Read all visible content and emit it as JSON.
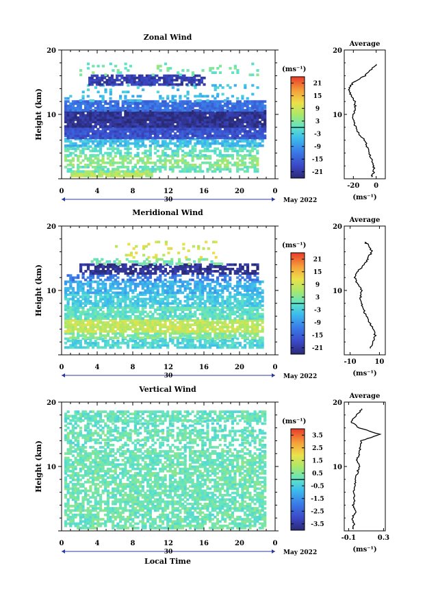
{
  "chart_data": [
    {
      "type": "heatmap",
      "title": "Zonal Wind",
      "ylabel": "Height (km)",
      "yticks": [
        "20",
        "10"
      ],
      "xticks": [
        "0",
        "4",
        "8",
        "12",
        "16",
        "20",
        "0"
      ],
      "date_day": "30",
      "date_month": "May 2022",
      "ylim": [
        0,
        20
      ],
      "xlim": [
        0,
        24
      ],
      "data_x_range": [
        0.3,
        22.8
      ],
      "data_y_range": [
        0.3,
        17.8
      ],
      "colorbar": {
        "unit": "(ms⁻¹)",
        "ticks": [
          "21",
          "15",
          "9",
          "3",
          "-3",
          "-9",
          "-15",
          "-21"
        ],
        "range": [
          -24,
          24
        ]
      },
      "layers": [
        {
          "y": [
            0.3,
            1.0
          ],
          "x": [
            1,
            10
          ],
          "value": 7,
          "coverage": 0.9
        },
        {
          "y": [
            1.0,
            2.0
          ],
          "x": [
            0.3,
            22
          ],
          "value": 1,
          "coverage": 0.6
        },
        {
          "y": [
            2.0,
            3.5
          ],
          "x": [
            0.3,
            22
          ],
          "value": 4,
          "coverage": 0.55
        },
        {
          "y": [
            3.5,
            5.0
          ],
          "x": [
            0.3,
            22
          ],
          "value": 0,
          "coverage": 0.5
        },
        {
          "y": [
            5.0,
            6.2
          ],
          "x": [
            0.3,
            22.5
          ],
          "value": -5,
          "coverage": 0.75
        },
        {
          "y": [
            6.2,
            8.0
          ],
          "x": [
            0.3,
            22.8
          ],
          "value": -17,
          "coverage": 0.95
        },
        {
          "y": [
            8.0,
            10.5
          ],
          "x": [
            0.3,
            22.8
          ],
          "value": -22,
          "coverage": 0.97
        },
        {
          "y": [
            10.5,
            12.0
          ],
          "x": [
            0.3,
            22.8
          ],
          "value": -13,
          "coverage": 0.9
        },
        {
          "y": [
            12.0,
            13.0
          ],
          "x": [
            0.3,
            21
          ],
          "value": -5,
          "coverage": 0.25
        },
        {
          "y": [
            13.0,
            14.5
          ],
          "x": [
            2,
            22
          ],
          "value": -4,
          "coverage": 0.15
        },
        {
          "y": [
            14.5,
            16.0
          ],
          "x": [
            3,
            16
          ],
          "value": -20,
          "coverage": 0.75
        },
        {
          "y": [
            16.0,
            17.8
          ],
          "x": [
            2,
            22
          ],
          "value": 2,
          "coverage": 0.1
        }
      ],
      "profile": {
        "title": "Average",
        "xticks": [
          "-20",
          "0"
        ],
        "xlim": [
          -28,
          8
        ],
        "xlabel": "(ms⁻¹)",
        "yticks": [
          "20",
          "10"
        ],
        "heights": [
          0.3,
          1,
          2,
          3,
          4,
          5,
          6,
          7,
          8,
          9,
          10,
          11,
          12,
          13,
          14,
          15,
          16,
          17,
          17.8
        ],
        "values": [
          -4,
          -2,
          -2,
          -4,
          -6,
          -8,
          -10,
          -15,
          -18,
          -20,
          -20,
          -18,
          -19,
          -22,
          -24,
          -20,
          -10,
          -4,
          0
        ]
      }
    },
    {
      "type": "heatmap",
      "title": "Meridional Wind",
      "ylabel": "Height (km)",
      "yticks": [
        "20",
        "10"
      ],
      "xticks": [
        "0",
        "4",
        "8",
        "12",
        "16",
        "20",
        "0"
      ],
      "date_day": "30",
      "date_month": "May 2022",
      "ylim": [
        0,
        20
      ],
      "xlim": [
        0,
        24
      ],
      "data_x_range": [
        0.3,
        22.8
      ],
      "data_y_range": [
        1.0,
        17.5
      ],
      "colorbar": {
        "unit": "(ms⁻¹)",
        "ticks": [
          "21",
          "15",
          "9",
          "3",
          "-3",
          "-9",
          "-15",
          "-21"
        ],
        "range": [
          -24,
          24
        ]
      },
      "layers": [
        {
          "y": [
            1.0,
            2.5
          ],
          "x": [
            0.3,
            22.5
          ],
          "value": -2,
          "coverage": 0.7
        },
        {
          "y": [
            2.5,
            3.5
          ],
          "x": [
            0.3,
            22.5
          ],
          "value": 3,
          "coverage": 0.75
        },
        {
          "y": [
            3.5,
            5.5
          ],
          "x": [
            0.3,
            22.5
          ],
          "value": 8,
          "coverage": 0.85
        },
        {
          "y": [
            5.5,
            7.5
          ],
          "x": [
            0.3,
            22.5
          ],
          "value": 0,
          "coverage": 0.8
        },
        {
          "y": [
            7.5,
            9.5
          ],
          "x": [
            0.3,
            22.5
          ],
          "value": -3,
          "coverage": 0.75
        },
        {
          "y": [
            9.5,
            11.5
          ],
          "x": [
            0.3,
            22.5
          ],
          "value": -6,
          "coverage": 0.7
        },
        {
          "y": [
            11.5,
            12.5
          ],
          "x": [
            0.3,
            22
          ],
          "value": -12,
          "coverage": 0.5
        },
        {
          "y": [
            12.5,
            14.0
          ],
          "x": [
            2,
            22
          ],
          "value": -22,
          "coverage": 0.7
        },
        {
          "y": [
            14.0,
            15.0
          ],
          "x": [
            3,
            18
          ],
          "value": 2,
          "coverage": 0.35
        },
        {
          "y": [
            15.0,
            17.5
          ],
          "x": [
            6,
            18
          ],
          "value": 10,
          "coverage": 0.1
        }
      ],
      "profile": {
        "title": "Average",
        "xticks": [
          "-10",
          "10"
        ],
        "xlim": [
          -14,
          14
        ],
        "xlabel": "(ms⁻¹)",
        "yticks": [
          "20",
          "10"
        ],
        "heights": [
          1,
          2,
          3,
          4,
          5,
          6,
          7,
          8,
          9,
          10,
          11,
          12,
          13,
          14,
          15,
          16,
          17,
          17.5
        ],
        "values": [
          4,
          6,
          7,
          6,
          3,
          1,
          -1,
          -2,
          -3,
          -2,
          -5,
          -7,
          -5,
          0,
          2,
          5,
          3,
          0
        ]
      }
    },
    {
      "type": "heatmap",
      "title": "Vertical Wind",
      "ylabel": "Height (km)",
      "xlabel": "Local Time",
      "yticks": [
        "20",
        "10"
      ],
      "xticks": [
        "0",
        "4",
        "8",
        "12",
        "16",
        "20",
        "0"
      ],
      "date_day": "30",
      "date_month": "May 2022",
      "ylim": [
        0,
        20
      ],
      "xlim": [
        0,
        24
      ],
      "data_x_range": [
        0.3,
        22.8
      ],
      "data_y_range": [
        0.3,
        18.5
      ],
      "colorbar": {
        "unit": "(ms⁻¹)",
        "ticks": [
          "3.5",
          "2.5",
          "1.5",
          "0.5",
          "-0.5",
          "-1.5",
          "-2.5",
          "-3.5"
        ],
        "range": [
          -4,
          4
        ]
      },
      "layers": [
        {
          "y": [
            0.3,
            12.5
          ],
          "x": [
            0.3,
            22.8
          ],
          "value": 0.2,
          "coverage": 0.7
        },
        {
          "y": [
            12.5,
            14.0
          ],
          "x": [
            0.3,
            22.8
          ],
          "value": 0.1,
          "coverage": 0.45
        },
        {
          "y": [
            14.0,
            15.5
          ],
          "x": [
            0.3,
            22.8
          ],
          "value": 0.2,
          "coverage": 0.6
        },
        {
          "y": [
            15.5,
            17.0
          ],
          "x": [
            0.3,
            22.8
          ],
          "value": 0.0,
          "coverage": 0.45
        },
        {
          "y": [
            17.0,
            18.5
          ],
          "x": [
            0.3,
            22.8
          ],
          "value": 0.1,
          "coverage": 0.7
        }
      ],
      "profile": {
        "title": "Average",
        "xticks": [
          "-0.1",
          "0.3"
        ],
        "xlim": [
          -0.15,
          0.32
        ],
        "xlabel": "(ms⁻¹)",
        "yticks": [
          "20",
          "10"
        ],
        "heights": [
          0.3,
          1,
          2,
          3,
          4,
          5,
          6,
          7,
          8,
          9,
          10,
          11,
          12,
          13,
          14,
          15,
          16,
          17,
          18,
          19
        ],
        "values": [
          -0.05,
          -0.03,
          -0.06,
          -0.02,
          -0.05,
          -0.03,
          -0.04,
          -0.02,
          -0.03,
          0.0,
          0.02,
          0.0,
          0.02,
          0.03,
          0.05,
          0.25,
          0.02,
          -0.08,
          0.0,
          0.05
        ]
      }
    }
  ]
}
